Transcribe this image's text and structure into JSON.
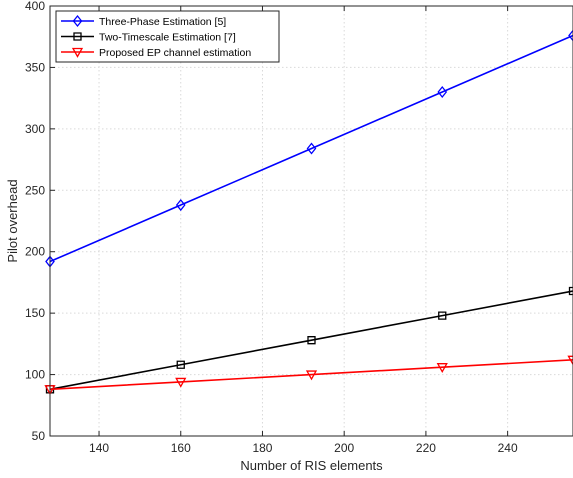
{
  "chart_data": {
    "type": "line",
    "title": "",
    "xlabel": "Number of RIS elements",
    "ylabel": "Pilot overhead",
    "xlim": [
      128,
      256
    ],
    "ylim": [
      50,
      400
    ],
    "xticks": [
      140,
      160,
      180,
      200,
      220,
      240
    ],
    "yticks": [
      50,
      100,
      150,
      200,
      250,
      300,
      350,
      400
    ],
    "grid": true,
    "legend_position": "top-left",
    "x": [
      128,
      160,
      192,
      224,
      256
    ],
    "series": [
      {
        "name": "Three-Phase Estimation [5]",
        "values": [
          192,
          238,
          284,
          330,
          376
        ],
        "color": "#0000ff",
        "marker": "diamond"
      },
      {
        "name": "Two-Timescale Estimation [7]",
        "values": [
          88,
          108,
          128,
          148,
          168
        ],
        "color": "#000000",
        "marker": "square"
      },
      {
        "name": "Proposed EP channel estimation",
        "values": [
          88,
          94,
          100,
          106,
          112
        ],
        "color": "#ff0000",
        "marker": "triangle-down"
      }
    ]
  }
}
